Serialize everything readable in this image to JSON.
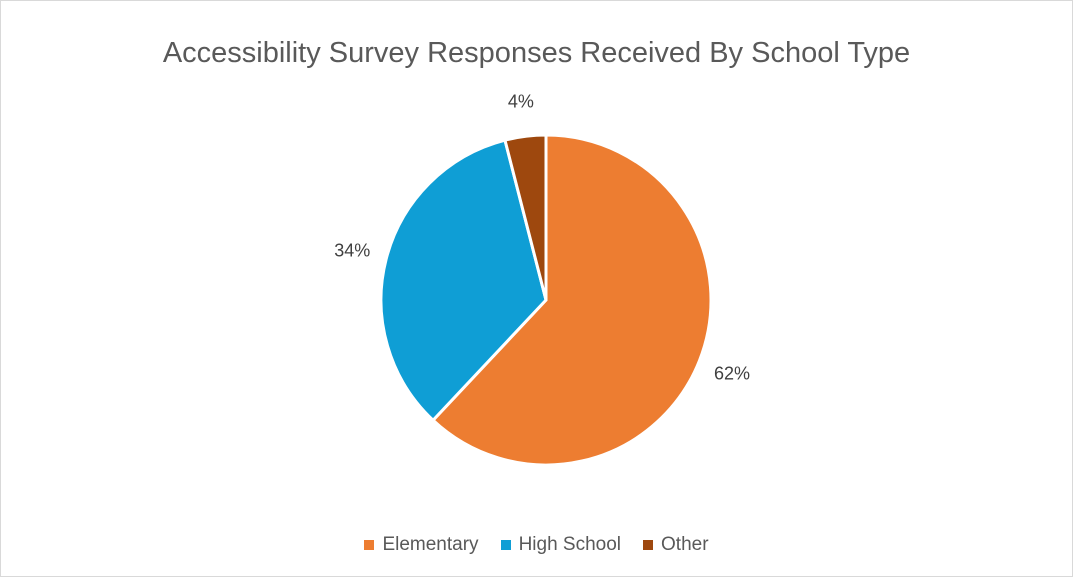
{
  "chart_data": {
    "type": "pie",
    "title": "Accessibility Survey Responses Received By School Type",
    "categories": [
      "Elementary",
      "High School",
      "Other"
    ],
    "values": [
      62,
      34,
      4
    ],
    "labels": [
      "62%",
      "34%",
      "4%"
    ],
    "colors": [
      "#ED7D31",
      "#0F9ED5",
      "#9E480E"
    ],
    "legend_position": "bottom"
  }
}
